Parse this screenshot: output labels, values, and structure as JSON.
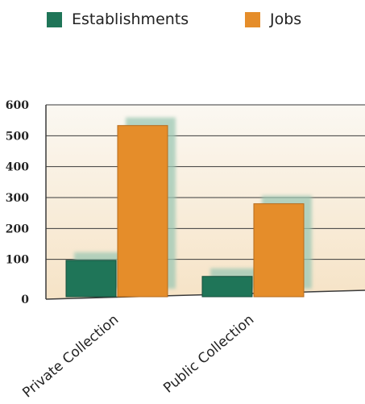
{
  "legend": {
    "establishments_label": "Establishments",
    "jobs_label": "Jobs"
  },
  "colors": {
    "establishments": "#1f7558",
    "jobs": "#e58d2a",
    "plot_bg_top": "#fbf8f2",
    "plot_bg_bottom": "#f6e3c6",
    "grid": "#3a3a3a",
    "shadow": "#9cc8b4"
  },
  "chart_data": {
    "type": "bar",
    "categories": [
      "Private Collection",
      "Public Collection"
    ],
    "series": [
      {
        "name": "Establishments",
        "values": [
          97,
          45
        ]
      },
      {
        "name": "Jobs",
        "values": [
          533,
          280
        ]
      }
    ],
    "ylim": [
      0,
      600
    ],
    "yticks": [
      0,
      100,
      200,
      300,
      400,
      500,
      600
    ],
    "grid": true,
    "legend_position": "top"
  }
}
